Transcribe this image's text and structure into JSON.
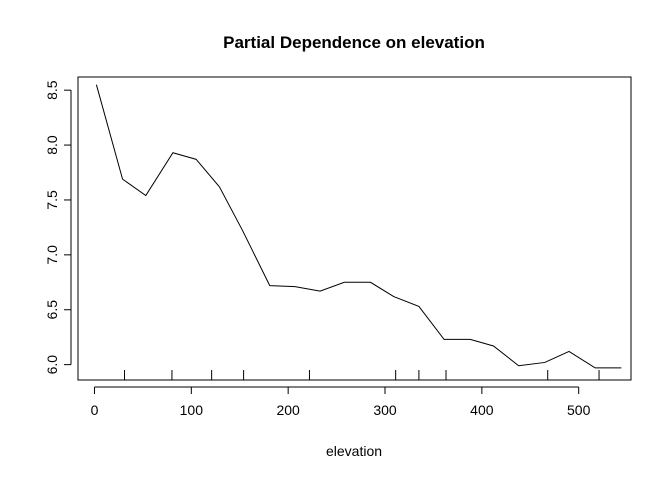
{
  "chart_data": {
    "type": "line",
    "title": "Partial Dependence on elevation",
    "xlabel": "elevation",
    "ylabel": "",
    "xlim": [
      -17,
      554
    ],
    "ylim": [
      5.86,
      8.62
    ],
    "x_ticks": [
      0,
      100,
      200,
      300,
      400,
      500
    ],
    "y_ticks": [
      6.0,
      6.5,
      7.0,
      7.5,
      8.0,
      8.5
    ],
    "x_tick_labels": [
      "0",
      "100",
      "200",
      "300",
      "400",
      "500"
    ],
    "y_tick_labels": [
      "6.0",
      "6.5",
      "7.0",
      "7.5",
      "8.0",
      "8.5"
    ],
    "grid": false,
    "rug": [
      31,
      80,
      121,
      154,
      222,
      311,
      335,
      363,
      468,
      521
    ],
    "series": [
      {
        "x": [
          2,
          29,
          53,
          81,
          105,
          129,
          153,
          181,
          207,
          233,
          258,
          285,
          309,
          335,
          361,
          388,
          412,
          438,
          465,
          490,
          517,
          544
        ],
        "y": [
          8.55,
          7.69,
          7.54,
          7.93,
          7.87,
          7.62,
          7.22,
          6.72,
          6.71,
          6.67,
          6.75,
          6.75,
          6.62,
          6.53,
          6.23,
          6.23,
          6.17,
          5.99,
          6.02,
          6.12,
          5.97,
          5.97
        ]
      }
    ]
  }
}
